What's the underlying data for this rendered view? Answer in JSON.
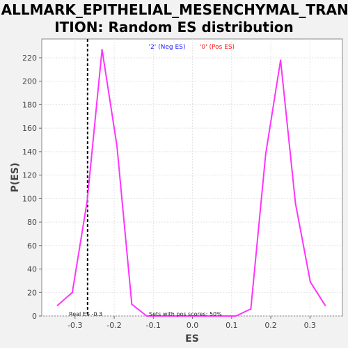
{
  "chart_data": {
    "type": "line",
    "title_lines": [
      "HALLMARK_EPITHELIAL_MESENCHYMAL_TRANS",
      "ITION: Random ES distribution"
    ],
    "xlabel": "ES",
    "ylabel": "P(ES)",
    "xlim": [
      -0.385,
      0.383
    ],
    "ylim": [
      0,
      236
    ],
    "xticks": [
      -0.3,
      -0.2,
      -0.1,
      0.0,
      0.1,
      0.2,
      0.3
    ],
    "xtick_labels": [
      "-0.3",
      "-0.2",
      "-0.1",
      "0.0",
      "0.1",
      "0.2",
      "0.3"
    ],
    "yticks": [
      0,
      20,
      40,
      60,
      80,
      100,
      120,
      140,
      160,
      180,
      200,
      220
    ],
    "ytick_labels": [
      "0",
      "20",
      "40",
      "60",
      "80",
      "100",
      "120",
      "140",
      "160",
      "180",
      "200",
      "220"
    ],
    "grid": true,
    "series": [
      {
        "color": "#ff33ff",
        "x": [
          -0.345,
          -0.307,
          -0.269,
          -0.231,
          -0.193,
          -0.155,
          -0.117,
          -0.079,
          -0.041,
          -0.003,
          0.035,
          0.073,
          0.111,
          0.149,
          0.187,
          0.225,
          0.263,
          0.301,
          0.339
        ],
        "y": [
          9,
          20,
          98,
          227,
          145,
          10,
          0,
          0,
          0,
          0,
          0,
          0,
          0,
          6,
          138,
          218,
          96,
          29,
          9
        ]
      }
    ],
    "real_es": -0.268,
    "real_es_label": "Real ES -0.3",
    "pos_scores_label": "Sets with pos scores: 50%",
    "legend": [
      {
        "label": "'2' (Neg ES)",
        "color": "#1a1aff"
      },
      {
        "label": "'0' (Pos ES)",
        "color": "#ff1a1a"
      }
    ]
  }
}
